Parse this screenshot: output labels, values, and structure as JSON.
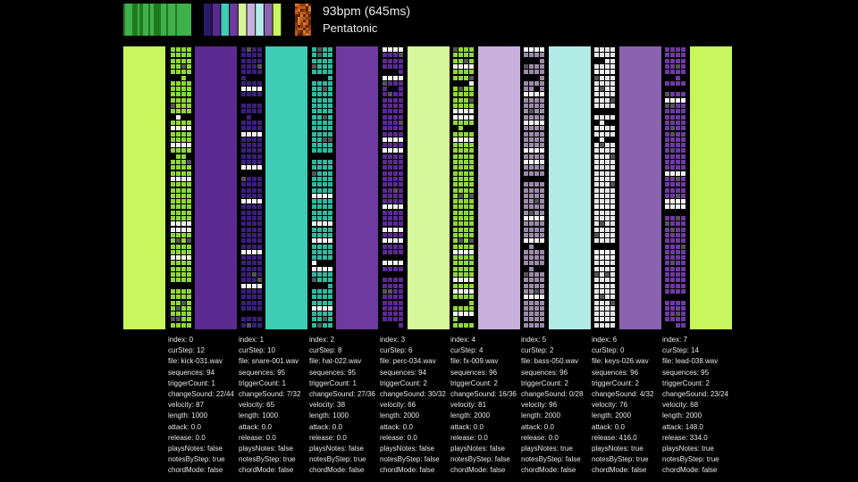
{
  "header": {
    "bpm_text": "93bpm (645ms)",
    "scale_text": "Pentatonic",
    "palette_icon": "color-palette-icon",
    "texture_icon": "texture-preview-icon",
    "pattern_icon": "pattern-preview-icon"
  },
  "colors": {
    "background": "#000000",
    "lime": "#c7f75c",
    "green": "#8fd63a",
    "dark_purple": "#5a2a90",
    "purple": "#6e3aa0",
    "teal": "#3ccdb4",
    "pale_lime": "#d6f79a",
    "lavender": "#c8b0dc",
    "pale_teal": "#b2ece6",
    "mid_purple": "#8a62b0"
  },
  "panels": [
    {
      "color": "#c7f75c",
      "name": "color-panel-0"
    },
    {
      "color": "#5a2a90",
      "name": "color-panel-1"
    },
    {
      "color": "#3ccdb4",
      "name": "color-panel-2"
    },
    {
      "color": "#6e3aa0",
      "name": "color-panel-3"
    },
    {
      "color": "#d6f79a",
      "name": "color-panel-4"
    },
    {
      "color": "#c8b0dc",
      "name": "color-panel-5"
    },
    {
      "color": "#b2ece6",
      "name": "color-panel-6"
    },
    {
      "color": "#8a62b0",
      "name": "color-panel-7"
    },
    {
      "color": "#c7f75c",
      "name": "color-panel-8"
    }
  ],
  "tracks": [
    {
      "index": "index: 0",
      "curStep": "curStep: 12",
      "file": "file: kick-031.wav",
      "sequences": "sequences: 94",
      "triggerCount": "triggerCount: 1",
      "changeSound": "changeSound: 22/44",
      "velocity": "velocity: 87",
      "length": "length: 1000",
      "attack": "attack: 0.0",
      "release": "release: 0.0",
      "playsNotes": "playsNotes: false",
      "notesByStep": "notesByStep: true",
      "chordMode": "chordMode: false",
      "grid_color": "#8fd63a"
    },
    {
      "index": "index: 1",
      "curStep": "curStep: 10",
      "file": "file: snare-001.wav",
      "sequences": "sequences: 95",
      "triggerCount": "triggerCount: 1",
      "changeSound": "changeSound: 7/32",
      "velocity": "velocity: 65",
      "length": "length: 1000",
      "attack": "attack: 0.0",
      "release": "release: 0.0",
      "playsNotes": "playsNotes: false",
      "notesByStep": "notesByStep: true",
      "chordMode": "chordMode: false",
      "grid_color": "#3a1f78"
    },
    {
      "index": "index: 2",
      "curStep": "curStep: 8",
      "file": "file: hat-022.wav",
      "sequences": "sequences: 95",
      "triggerCount": "triggerCount: 1",
      "changeSound": "changeSound: 27/36",
      "velocity": "velocity: 38",
      "length": "length: 1000",
      "attack": "attack: 0.0",
      "release": "release: 0.0",
      "playsNotes": "playsNotes: false",
      "notesByStep": "notesByStep: true",
      "chordMode": "chordMode: false",
      "grid_color": "#2fb8a0"
    },
    {
      "index": "index: 3",
      "curStep": "curStep: 6",
      "file": "file: perc-034.wav",
      "sequences": "sequences: 94",
      "triggerCount": "triggerCount: 2",
      "changeSound": "changeSound: 30/32",
      "velocity": "velocity: 66",
      "length": "length: 2000",
      "attack": "attack: 0.0",
      "release": "release: 0.0",
      "playsNotes": "playsNotes: false",
      "notesByStep": "notesByStep: false",
      "chordMode": "chordMode: false",
      "grid_color": "#5a2a90"
    },
    {
      "index": "index: 4",
      "curStep": "curStep: 4",
      "file": "file: fx-009.wav",
      "sequences": "sequences: 96",
      "triggerCount": "triggerCount: 2",
      "changeSound": "changeSound: 16/36",
      "velocity": "velocity: 81",
      "length": "length: 2000",
      "attack": "attack: 0.0",
      "release": "release: 0.0",
      "playsNotes": "playsNotes: false",
      "notesByStep": "notesByStep: false",
      "chordMode": "chordMode: false",
      "grid_color": "#8fd63a"
    },
    {
      "index": "index: 5",
      "curStep": "curStep: 2",
      "file": "file: bass-050.wav",
      "sequences": "sequences: 96",
      "triggerCount": "triggerCount: 2",
      "changeSound": "changeSound: 0/28",
      "velocity": "velocity: 96",
      "length": "length: 2000",
      "attack": "attack: 0.0",
      "release": "release: 0.0",
      "playsNotes": "playsNotes: true",
      "notesByStep": "notesByStep: false",
      "chordMode": "chordMode: false",
      "grid_color": "#9a8aa8"
    },
    {
      "index": "index: 6",
      "curStep": "curStep: 0",
      "file": "file: keys-026.wav",
      "sequences": "sequences: 96",
      "triggerCount": "triggerCount: 2",
      "changeSound": "changeSound: 4/32",
      "velocity": "velocity: 76",
      "length": "length: 2000",
      "attack": "attack: 0.0",
      "release": "release: 416.0",
      "playsNotes": "playsNotes: true",
      "notesByStep": "notesByStep: true",
      "chordMode": "chordMode: false",
      "grid_color": "#e6e6e6"
    },
    {
      "index": "index: 7",
      "curStep": "curStep: 14",
      "file": "file: lead-038.wav",
      "sequences": "sequences: 95",
      "triggerCount": "triggerCount: 2",
      "changeSound": "changeSound: 23/24",
      "velocity": "velocity: 68",
      "length": "length: 2000",
      "attack": "attack: 148.0",
      "release": "release: 334.0",
      "playsNotes": "playsNotes: true",
      "notesByStep": "notesByStep: true",
      "chordMode": "chordMode: false",
      "grid_color": "#6e3aa0"
    }
  ]
}
